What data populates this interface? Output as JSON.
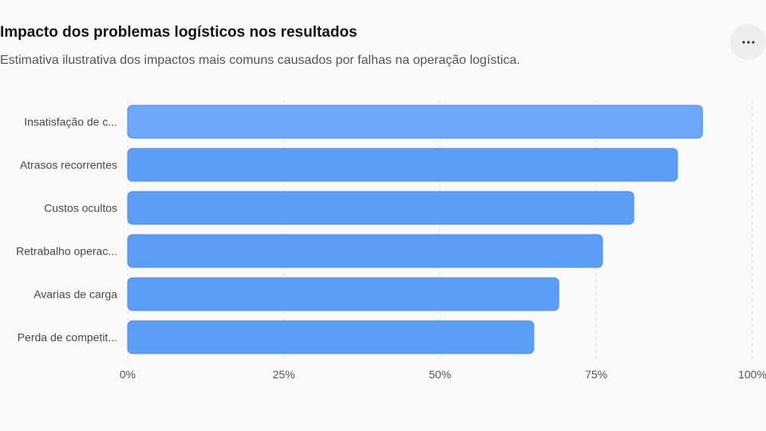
{
  "header": {
    "title": "Impacto dos problemas logísticos nos resultados",
    "subtitle": "Estimativa ilustrativa dos impactos mais comuns causados por falhas na operação logística.",
    "more_icon": "more-horizontal-icon"
  },
  "chart_data": {
    "type": "bar",
    "orientation": "horizontal",
    "categories": [
      "Insatisfação de c...",
      "Atrasos recorrentes",
      "Custos ocultos",
      "Retrabalho operac...",
      "Avarias de carga",
      "Perda de competit..."
    ],
    "values": [
      92,
      88,
      81,
      76,
      69,
      65
    ],
    "xlim": [
      0,
      100
    ],
    "x_ticks": [
      "0%",
      "25%",
      "50%",
      "75%",
      "100%"
    ],
    "grid": true,
    "colors": {
      "bar": "#5b9ef8",
      "bar_highlight": "#6ca7fa",
      "bar_stroke": "#4a8ef0",
      "grid": "#e2e2e2",
      "tick_text": "#555555"
    }
  }
}
